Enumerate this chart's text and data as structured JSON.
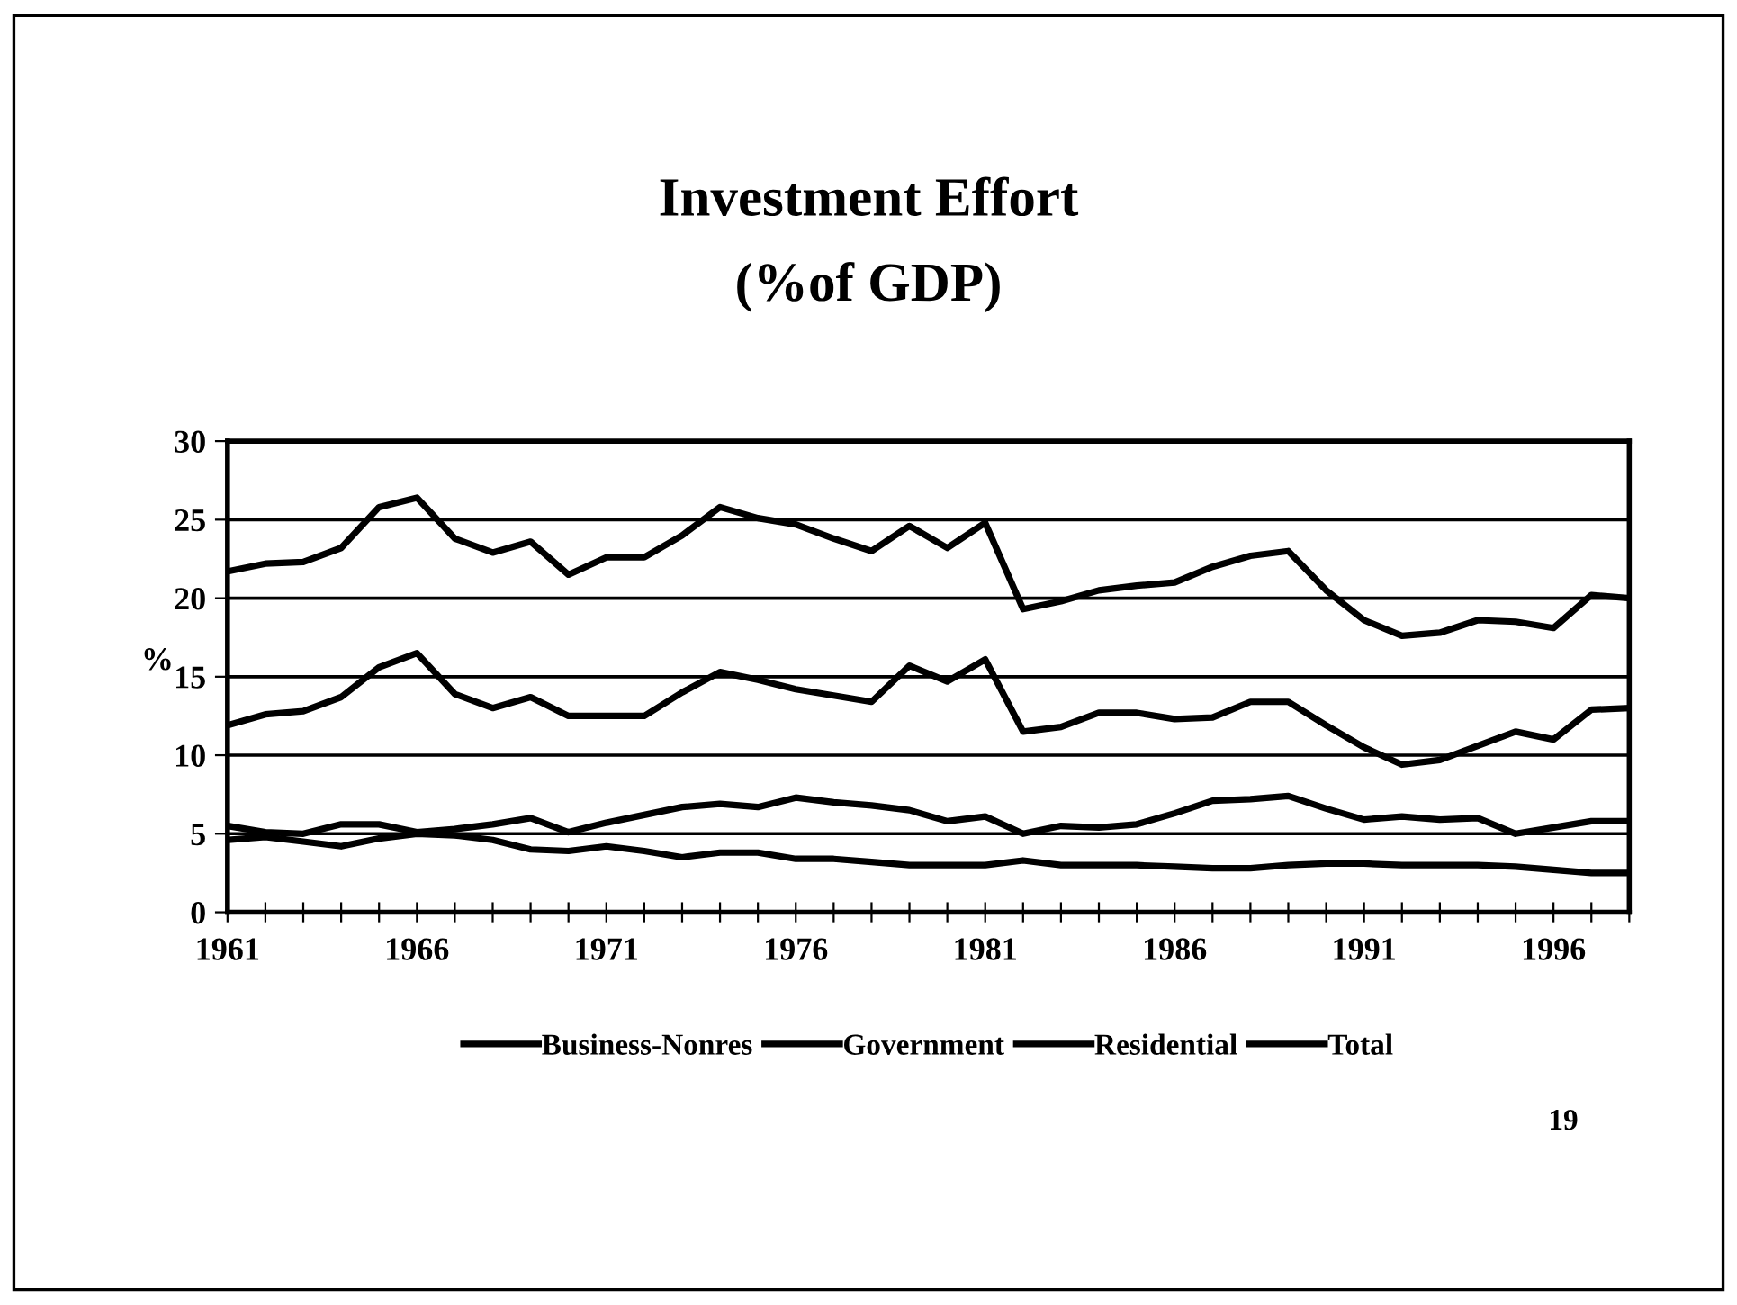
{
  "chart_data": {
    "type": "line",
    "title": "Investment Effort",
    "subtitle": "(%of GDP)",
    "ylabel": "%",
    "x": [
      1961,
      1962,
      1963,
      1964,
      1965,
      1966,
      1967,
      1968,
      1969,
      1970,
      1971,
      1972,
      1973,
      1974,
      1975,
      1976,
      1977,
      1978,
      1979,
      1980,
      1981,
      1982,
      1983,
      1984,
      1985,
      1986,
      1987,
      1988,
      1989,
      1990,
      1991,
      1992,
      1993,
      1994,
      1995,
      1996,
      1997,
      1998
    ],
    "series": [
      {
        "name": "Business-Nonres",
        "color": "#000000",
        "values": [
          11.9,
          12.6,
          12.8,
          13.7,
          15.6,
          16.5,
          13.9,
          13.0,
          13.7,
          12.5,
          12.5,
          12.5,
          14.0,
          15.3,
          14.8,
          14.2,
          13.8,
          13.4,
          15.7,
          14.7,
          16.1,
          11.5,
          11.8,
          12.7,
          12.7,
          12.3,
          12.4,
          13.4,
          13.4,
          11.9,
          10.5,
          9.4,
          9.7,
          10.6,
          11.5,
          11.0,
          12.9,
          13.0
        ]
      },
      {
        "name": "Government",
        "color": "#000000",
        "values": [
          4.6,
          4.8,
          4.5,
          4.2,
          4.7,
          5.0,
          4.9,
          4.6,
          4.0,
          3.9,
          4.2,
          3.9,
          3.5,
          3.8,
          3.8,
          3.4,
          3.4,
          3.2,
          3.0,
          3.0,
          3.0,
          3.3,
          3.0,
          3.0,
          3.0,
          2.9,
          2.8,
          2.8,
          3.0,
          3.1,
          3.1,
          3.0,
          3.0,
          3.0,
          2.9,
          2.7,
          2.5,
          2.5
        ]
      },
      {
        "name": "Residential",
        "color": "#000000",
        "values": [
          5.5,
          5.1,
          5.0,
          5.6,
          5.6,
          5.1,
          5.3,
          5.6,
          6.0,
          5.1,
          5.7,
          6.2,
          6.7,
          6.9,
          6.7,
          7.3,
          7.0,
          6.8,
          6.5,
          5.8,
          6.1,
          5.0,
          5.5,
          5.4,
          5.6,
          6.3,
          7.1,
          7.2,
          7.4,
          6.6,
          5.9,
          6.1,
          5.9,
          6.0,
          5.0,
          5.4,
          5.8,
          5.8
        ]
      },
      {
        "name": "Total",
        "color": "#000000",
        "values": [
          21.7,
          22.2,
          22.3,
          23.2,
          25.8,
          26.4,
          23.8,
          22.9,
          23.6,
          21.5,
          22.6,
          22.6,
          24.0,
          25.8,
          25.1,
          24.7,
          23.8,
          23.0,
          24.6,
          23.2,
          24.8,
          19.3,
          19.8,
          20.5,
          20.8,
          21.0,
          22.0,
          22.7,
          23.0,
          20.5,
          18.6,
          17.6,
          17.8,
          18.6,
          18.5,
          18.1,
          20.2,
          20.0
        ]
      }
    ],
    "xlim": [
      1961,
      1998
    ],
    "xticks": [
      1961,
      {
        "value": 1962,
        "label": null
      },
      {
        "value": 1963,
        "label": null
      },
      {
        "value": 1964,
        "label": null
      },
      {
        "value": 1965,
        "label": null
      },
      1966,
      {
        "value": 1967,
        "label": null
      },
      {
        "value": 1968,
        "label": null
      },
      {
        "value": 1969,
        "label": null
      },
      {
        "value": 1970,
        "label": null
      },
      1971,
      {
        "value": 1972,
        "label": null
      },
      {
        "value": 1973,
        "label": null
      },
      {
        "value": 1974,
        "label": null
      },
      {
        "value": 1975,
        "label": null
      },
      1976,
      {
        "value": 1977,
        "label": null
      },
      {
        "value": 1978,
        "label": null
      },
      {
        "value": 1979,
        "label": null
      },
      {
        "value": 1980,
        "label": null
      },
      1981,
      {
        "value": 1982,
        "label": null
      },
      {
        "value": 1983,
        "label": null
      },
      {
        "value": 1984,
        "label": null
      },
      {
        "value": 1985,
        "label": null
      },
      1986,
      {
        "value": 1987,
        "label": null
      },
      {
        "value": 1988,
        "label": null
      },
      {
        "value": 1989,
        "label": null
      },
      {
        "value": 1990,
        "label": null
      },
      1991,
      {
        "value": 1992,
        "label": null
      },
      {
        "value": 1993,
        "label": null
      },
      {
        "value": 1994,
        "label": null
      },
      {
        "value": 1995,
        "label": null
      },
      1996,
      {
        "value": 1997,
        "label": null
      },
      {
        "value": 1998,
        "label": null
      }
    ],
    "ylim": [
      0,
      30
    ],
    "yticks": [
      0,
      5,
      10,
      15,
      20,
      25,
      30
    ],
    "grid": "y",
    "legend": "bottom",
    "marker": "none",
    "line_style": "solid",
    "annotations": [
      "19"
    ]
  }
}
